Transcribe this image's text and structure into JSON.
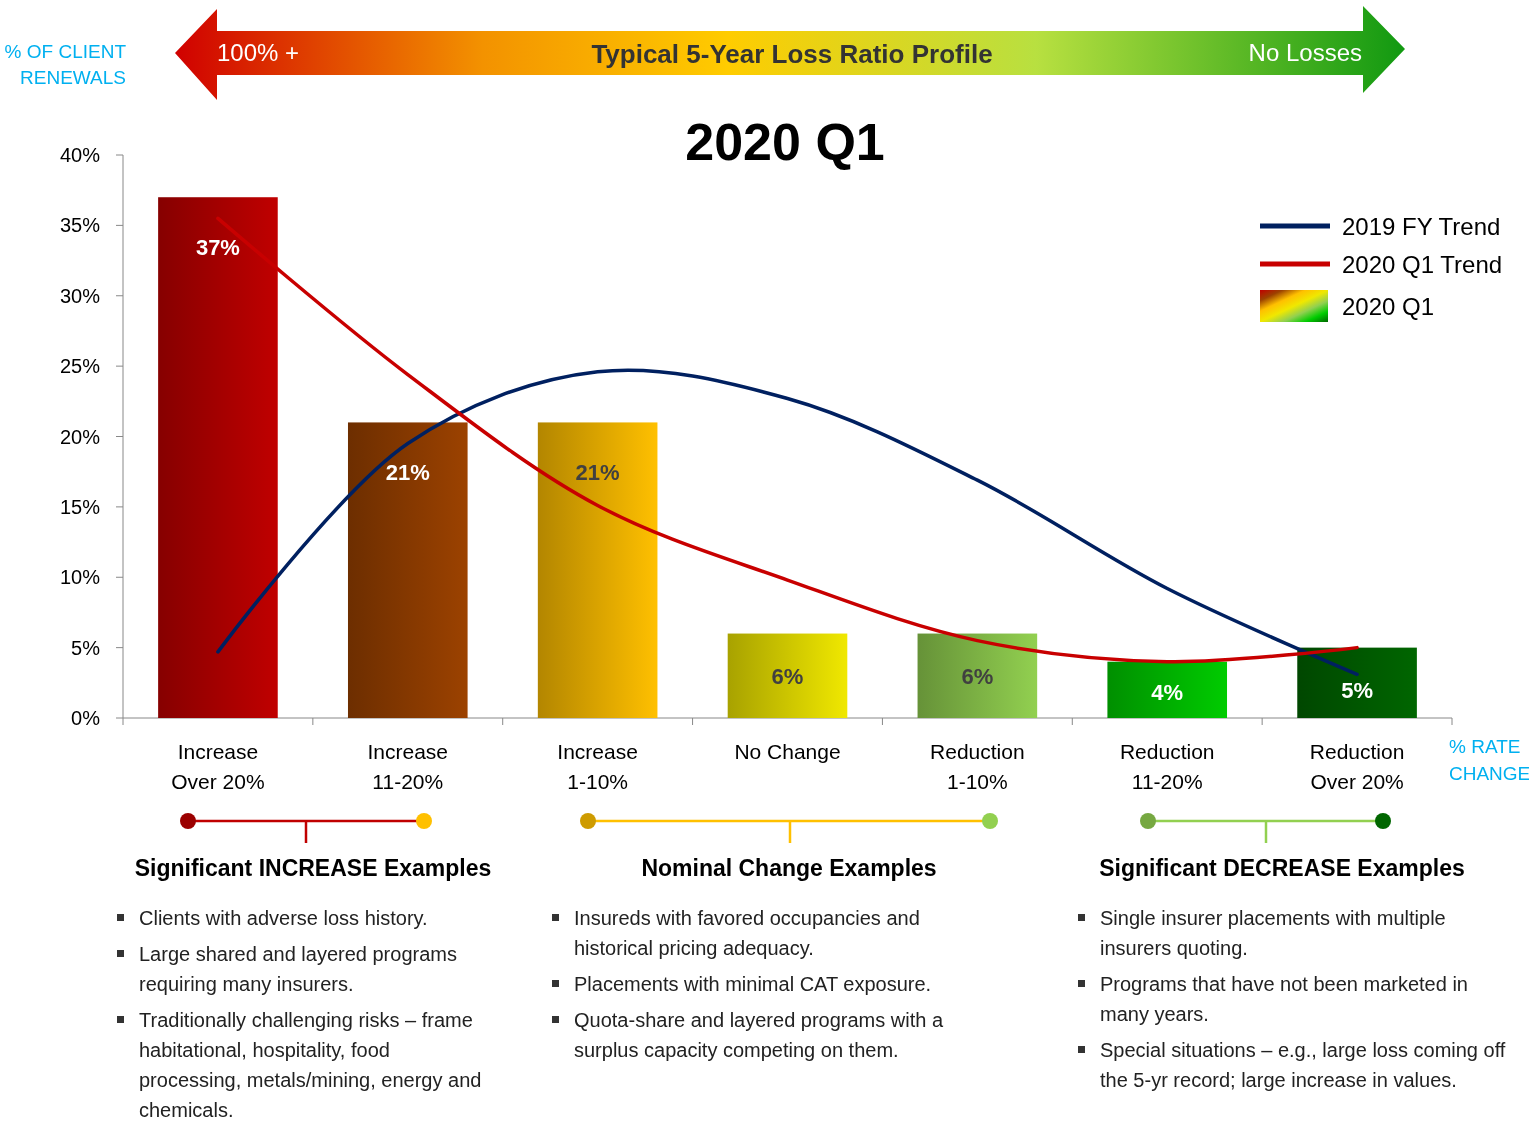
{
  "chart_data": {
    "type": "bar",
    "title": "2020 Q1",
    "xlabel": "% RATE CHANGE",
    "ylabel": "% OF CLIENT RENEWALS",
    "categories": [
      "Increase Over 20%",
      "Increase 11-20%",
      "Increase 1-10%",
      "No Change",
      "Reduction 1-10%",
      "Reduction 11-20%",
      "Reduction Over 20%"
    ],
    "series": [
      {
        "name": "2019 FY Trend",
        "type": "line",
        "color": "#002060",
        "values": [
          4.7,
          19.5,
          24.6,
          22.7,
          16.9,
          9.2,
          3.1
        ]
      },
      {
        "name": "2020 Q1 Trend",
        "type": "line",
        "color": "#c80000",
        "values": [
          35.5,
          24.4,
          15.1,
          9.8,
          5.5,
          4.0,
          5.0
        ]
      },
      {
        "name": "2020 Q1",
        "colors": [
          "#c00000",
          "#9c4200",
          "#ffc000",
          "#f0e800",
          "#92d050",
          "#00cc00",
          "#006600"
        ],
        "values": [
          37,
          21,
          21,
          6,
          6,
          4,
          5
        ],
        "value_labels": [
          "37%",
          "21%",
          "21%",
          "6%",
          "6%",
          "4%",
          "5%"
        ]
      }
    ],
    "ylim": [
      0,
      40
    ],
    "yticks": [
      {
        "value": 0,
        "label": "0%"
      },
      {
        "value": 5,
        "label": "5%"
      },
      {
        "value": 10,
        "label": "10%"
      },
      {
        "value": 15,
        "label": "15%"
      },
      {
        "value": 20,
        "label": "20%"
      },
      {
        "value": 25,
        "label": "25%"
      },
      {
        "value": 30,
        "label": "30%"
      },
      {
        "value": 35,
        "label": "35%"
      },
      {
        "value": 40,
        "label": "40%"
      }
    ],
    "legend": "top right",
    "annotations": [
      "100% +",
      "Typical 5-Year Loss Ratio Profile",
      "No Losses",
      "Significant INCREASE Examples",
      "Clients with adverse loss history.",
      "Large shared and layered programs requiring many insurers.",
      "Traditionally challenging risks – frame habitational, hospitality, food processing, metals/mining, energy and chemicals.",
      "Nominal Change Examples",
      "Insureds with favored occupancies and historical pricing adequacy.",
      "Placements with minimal CAT exposure.",
      "Quota-share and layered programs with a surplus capacity competing on them.",
      "Significant DECREASE Examples",
      "Single insurer placements  with multiple insurers quoting.",
      "Programs that have not been marketed in many years.",
      "Special situations – e.g., large loss coming off the 5-yr record; large increase in values."
    ]
  }
}
